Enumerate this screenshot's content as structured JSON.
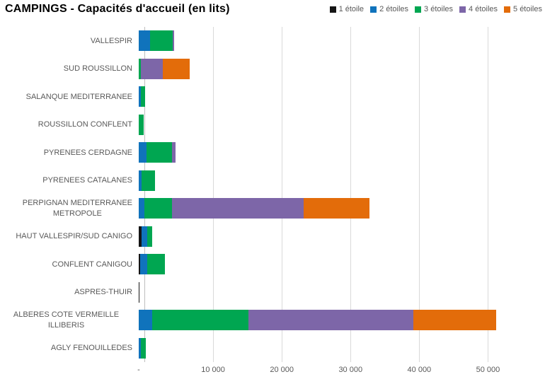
{
  "title": "CAMPINGS - Capacités d'accueil (en lits)",
  "colors": {
    "axis_line": "#BFBFBF",
    "gridline": "#D9D9D9",
    "label_text": "#595959",
    "title_text": "#000000"
  },
  "chart_data": {
    "type": "bar",
    "orientation": "horizontal",
    "stacked": true,
    "title": "CAMPINGS - Capacités d'accueil (en lits)",
    "legend_position": "top-right",
    "gridlines": true,
    "categories": [
      "VALLESPIR",
      "SUD ROUSSILLON",
      "SALANQUE MEDITERRANEE",
      "ROUSSILLON CONFLENT",
      "PYRENEES CERDAGNE",
      "PYRENEES CATALANES",
      "PERPIGNAN MEDITERRANEE\nMETROPOLE",
      "HAUT VALLESPIR/SUD CANIGO",
      "CONFLENT CANIGOU",
      "ASPRES-THUIR",
      "ALBERES COTE VERMEILLE ILLIBERIS",
      "AGLY FENOUILLEDES"
    ],
    "series": [
      {
        "name": "1 étoile",
        "color": "#151515",
        "values": [
          0,
          0,
          0,
          0,
          0,
          0,
          0,
          410,
          240,
          150,
          0,
          0
        ]
      },
      {
        "name": "2 étoiles",
        "color": "#1073BC",
        "values": [
          1650,
          0,
          340,
          0,
          1130,
          410,
          860,
          790,
          960,
          0,
          1960,
          310
        ]
      },
      {
        "name": "3 étoiles",
        "color": "#00A651",
        "values": [
          3330,
          280,
          620,
          690,
          3680,
          1990,
          3950,
          790,
          2580,
          0,
          14050,
          720
        ]
      },
      {
        "name": "4 étoiles",
        "color": "#7D66A8",
        "values": [
          170,
          3270,
          0,
          0,
          550,
          0,
          19170,
          0,
          0,
          0,
          23990,
          0
        ]
      },
      {
        "name": "5 étoiles",
        "color": "#E36C0A",
        "values": [
          0,
          3920,
          0,
          0,
          0,
          0,
          9560,
          0,
          0,
          0,
          12060,
          0
        ]
      }
    ],
    "x_axis": {
      "ticks": [
        "-",
        "10 000",
        "20 000",
        "30 000",
        "40 000",
        "50 000"
      ],
      "tick_values": [
        0,
        10000,
        20000,
        30000,
        40000,
        50000
      ],
      "max": 55000
    }
  }
}
